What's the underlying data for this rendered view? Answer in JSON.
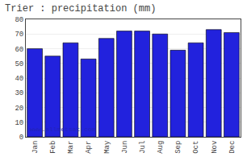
{
  "chart_data": {
    "type": "bar",
    "title": "Trier : precipitation (mm)",
    "categories": [
      "Jan",
      "Feb",
      "Mar",
      "Apr",
      "May",
      "Jun",
      "Jul",
      "Aug",
      "Sep",
      "Oct",
      "Nov",
      "Dec"
    ],
    "values": [
      60,
      55,
      64,
      53,
      67,
      72,
      72,
      70,
      59,
      64,
      73,
      71
    ],
    "color": "#2222dd",
    "ylim": [
      0,
      80
    ],
    "yticks": [
      0,
      10,
      20,
      30,
      40,
      50,
      60,
      70,
      80
    ],
    "grid": true,
    "annotations": [
      "www.allmetsat.com"
    ]
  }
}
